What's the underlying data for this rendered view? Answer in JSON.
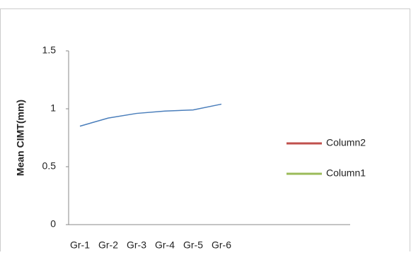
{
  "chart_data": {
    "type": "line",
    "y_label": "Mean CIMT(mm)",
    "categories": [
      "Gr-1",
      "Gr-2",
      "Gr-3",
      "Gr-4",
      "Gr-5",
      "Gr-6"
    ],
    "series": [
      {
        "color": "#4a7ebb",
        "values": [
          0.85,
          0.92,
          0.96,
          0.98,
          0.99,
          1.04
        ]
      },
      {
        "name": "Column2",
        "color": "#c0504d",
        "values": [
          null,
          null,
          null,
          null,
          null,
          null
        ]
      },
      {
        "name": "Column1",
        "color": "#9bbb59",
        "values": [
          null,
          null,
          null,
          null,
          null,
          null
        ]
      }
    ],
    "ylim": [
      0,
      1.5
    ],
    "yticks": [
      0,
      0.5,
      1,
      1.5
    ],
    "grid": false,
    "legend": "right"
  }
}
